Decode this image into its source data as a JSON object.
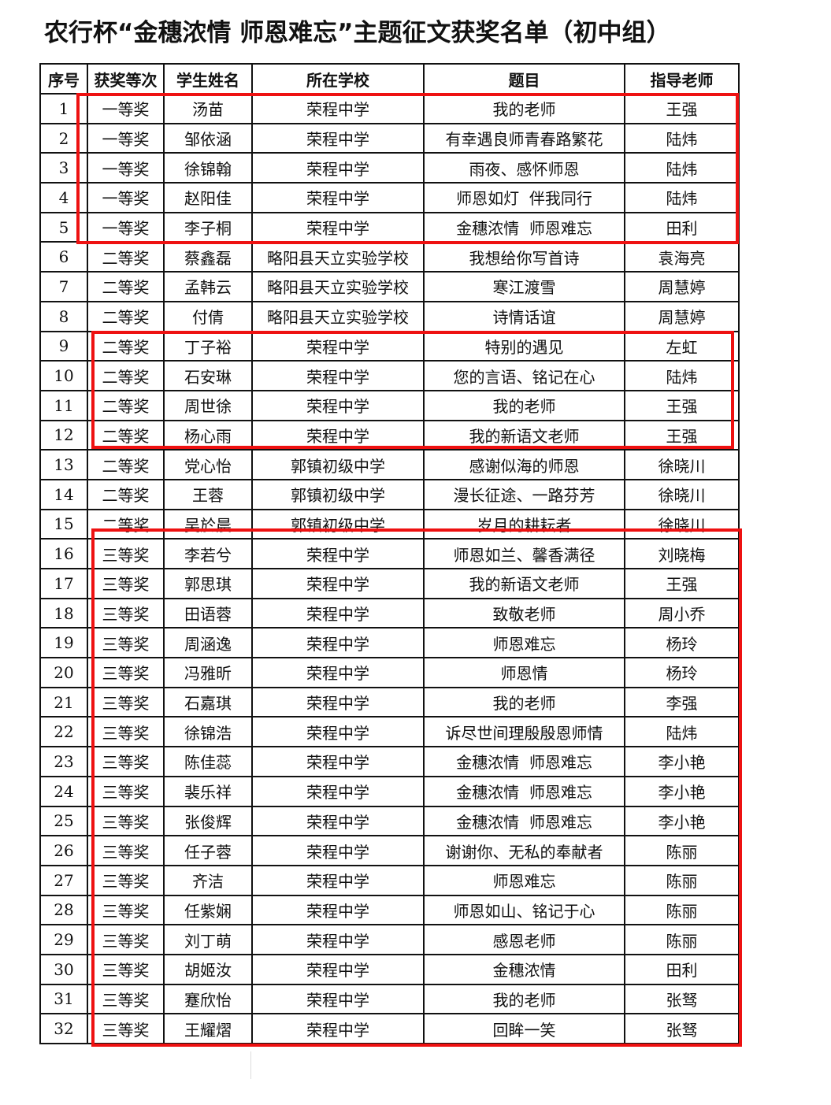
{
  "title": "农行杯“金穗浓情 师恩难忘”主题征文获奖名单（初中组）",
  "columns": [
    "序号",
    "获奖等次",
    "学生姓名",
    "所在学校",
    "题目",
    "指导老师"
  ],
  "rows": [
    [
      "1",
      "一等奖",
      "汤苗",
      "荣程中学",
      "我的老师",
      "王强"
    ],
    [
      "2",
      "一等奖",
      "邹依涵",
      "荣程中学",
      "有幸遇良师青春路繁花",
      "陆炜"
    ],
    [
      "3",
      "一等奖",
      "徐锦翰",
      "荣程中学",
      "雨夜、感怀师恩",
      "陆炜"
    ],
    [
      "4",
      "一等奖",
      "赵阳佳",
      "荣程中学",
      "师恩如灯  伴我同行",
      "陆炜"
    ],
    [
      "5",
      "一等奖",
      "李子桐",
      "荣程中学",
      "金穗浓情  师恩难忘",
      "田利"
    ],
    [
      "6",
      "二等奖",
      "蔡鑫磊",
      "略阳县天立实验学校",
      "我想给你写首诗",
      "袁海亮"
    ],
    [
      "7",
      "二等奖",
      "孟韩云",
      "略阳县天立实验学校",
      "寒江渡雪",
      "周慧婷"
    ],
    [
      "8",
      "二等奖",
      "付倩",
      "略阳县天立实验学校",
      "诗情话谊",
      "周慧婷"
    ],
    [
      "9",
      "二等奖",
      "丁子裕",
      "荣程中学",
      "特别的遇见",
      "左虹"
    ],
    [
      "10",
      "二等奖",
      "石安琳",
      "荣程中学",
      "您的言语、铭记在心",
      "陆炜"
    ],
    [
      "11",
      "二等奖",
      "周世徐",
      "荣程中学",
      "我的老师",
      "王强"
    ],
    [
      "12",
      "二等奖",
      "杨心雨",
      "荣程中学",
      "我的新语文老师",
      "王强"
    ],
    [
      "13",
      "二等奖",
      "党心怡",
      "郭镇初级中学",
      "感谢似海的师恩",
      "徐晓川"
    ],
    [
      "14",
      "二等奖",
      "王蓉",
      "郭镇初级中学",
      "漫长征途、一路芬芳",
      "徐晓川"
    ],
    [
      "15",
      "二等奖",
      "吴於晨",
      "郭镇初级中学",
      "岁月的耕耘者",
      "徐晓川"
    ],
    [
      "16",
      "三等奖",
      "李若兮",
      "荣程中学",
      "师恩如兰、馨香满径",
      "刘晓梅"
    ],
    [
      "17",
      "三等奖",
      "郭思琪",
      "荣程中学",
      "我的新语文老师",
      "王强"
    ],
    [
      "18",
      "三等奖",
      "田语蓉",
      "荣程中学",
      "致敬老师",
      "周小乔"
    ],
    [
      "19",
      "三等奖",
      "周涵逸",
      "荣程中学",
      "师恩难忘",
      "杨玲"
    ],
    [
      "20",
      "三等奖",
      "冯雅昕",
      "荣程中学",
      "师恩情",
      "杨玲"
    ],
    [
      "21",
      "三等奖",
      "石嘉琪",
      "荣程中学",
      "我的老师",
      "李强"
    ],
    [
      "22",
      "三等奖",
      "徐锦浩",
      "荣程中学",
      "诉尽世间理殷殷恩师情",
      "陆炜"
    ],
    [
      "23",
      "三等奖",
      "陈佳蕊",
      "荣程中学",
      "金穗浓情  师恩难忘",
      "李小艳"
    ],
    [
      "24",
      "三等奖",
      "裴乐祥",
      "荣程中学",
      "金穗浓情  师恩难忘",
      "李小艳"
    ],
    [
      "25",
      "三等奖",
      "张俊辉",
      "荣程中学",
      "金穗浓情  师恩难忘",
      "李小艳"
    ],
    [
      "26",
      "三等奖",
      "任子蓉",
      "荣程中学",
      "谢谢你、无私的奉献者",
      "陈丽"
    ],
    [
      "27",
      "三等奖",
      "齐洁",
      "荣程中学",
      "师恩难忘",
      "陈丽"
    ],
    [
      "28",
      "三等奖",
      "任紫娴",
      "荣程中学",
      "师恩如山、铭记于心",
      "陈丽"
    ],
    [
      "29",
      "三等奖",
      "刘丁萌",
      "荣程中学",
      "感恩老师",
      "陈丽"
    ],
    [
      "30",
      "三等奖",
      "胡姬汝",
      "荣程中学",
      "金穗浓情",
      "田利"
    ],
    [
      "31",
      "三等奖",
      "蹇欣怡",
      "荣程中学",
      "我的老师",
      "张驽"
    ],
    [
      "32",
      "三等奖",
      "王耀熠",
      "荣程中学",
      "回眸一笑",
      "张驽"
    ]
  ],
  "highlight_color": "#ee1111"
}
